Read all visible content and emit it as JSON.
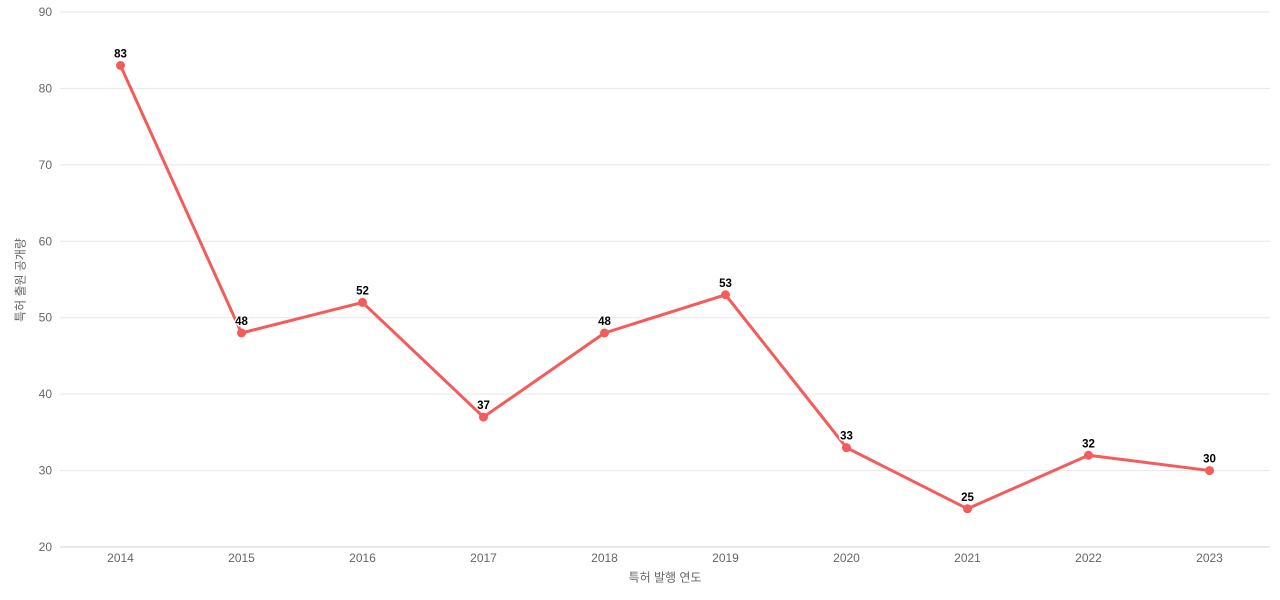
{
  "chart_data": {
    "type": "line",
    "title": "",
    "xlabel": "특허 발행 연도",
    "ylabel": "특허 출원 공개량",
    "categories": [
      "2014",
      "2015",
      "2016",
      "2017",
      "2018",
      "2019",
      "2020",
      "2021",
      "2022",
      "2023"
    ],
    "series": [
      {
        "name": "특허 출원 공개량",
        "values": [
          83,
          48,
          52,
          37,
          48,
          53,
          33,
          25,
          32,
          30
        ]
      }
    ],
    "ylim": [
      20,
      90
    ],
    "yticks": [
      20,
      30,
      40,
      50,
      60,
      70,
      80,
      90
    ],
    "grid": "horizontal-only",
    "legend_position": "none",
    "data_labels_shown": true,
    "colors": {
      "line": "#f45b5b",
      "marker": "#f45b5b",
      "grid_line": "#e6e6e6",
      "axis_line": "#ccd6eb",
      "tick_label": "#666666",
      "axis_title": "#666666",
      "data_label": "#000000",
      "data_label_halo": "#ffffff",
      "background": "#ffffff"
    }
  }
}
